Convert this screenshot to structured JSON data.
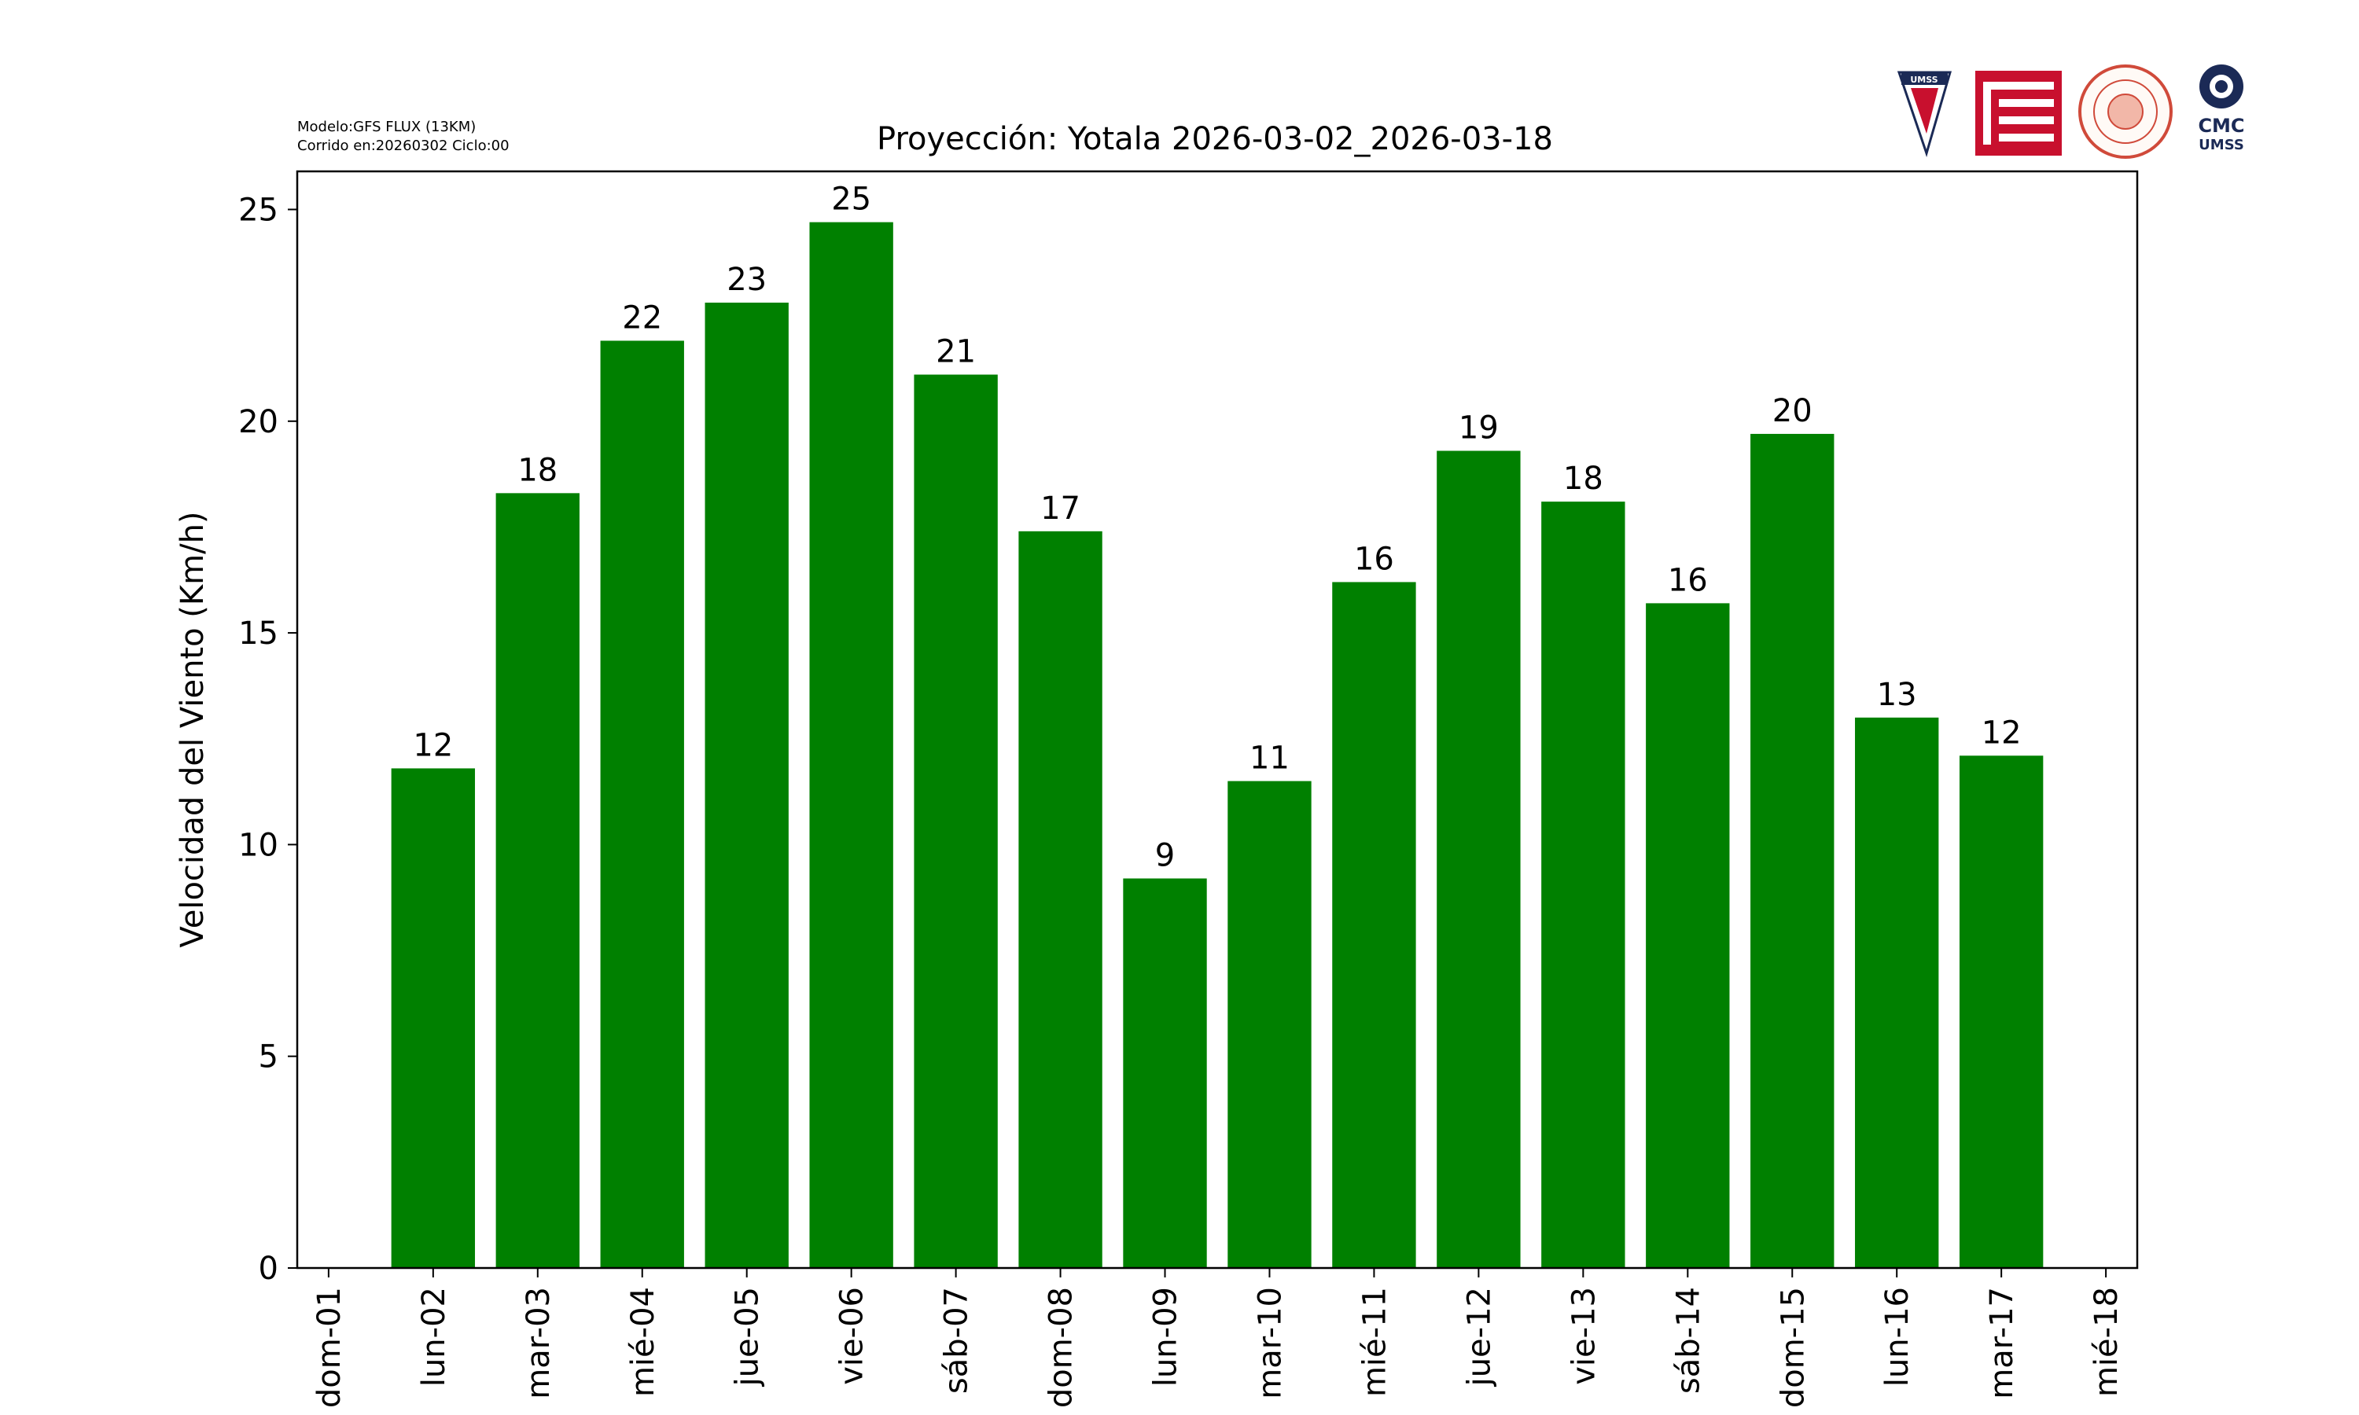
{
  "header": {
    "model_line": "Modelo:GFS FLUX (13KM)",
    "run_line": "Corrido en:20260302 Ciclo:00"
  },
  "logos": {
    "umss_label": "UMSS",
    "cmc_label": "CMC",
    "cmc_sub_label": "UMSS"
  },
  "chart_data": {
    "type": "bar",
    "title": "Proyección: Yotala  2026-03-02_2026-03-18",
    "xlabel": "",
    "ylabel": "Velocidad del Viento (Km/h)",
    "ylim": [
      0,
      25.9
    ],
    "yticks": [
      0,
      5,
      10,
      15,
      20,
      25
    ],
    "xticks": [
      "dom-01",
      "lun-02",
      "mar-03",
      "mié-04",
      "jue-05",
      "vie-06",
      "sáb-07",
      "dom-08",
      "lun-09",
      "mar-10",
      "mié-11",
      "jue-12",
      "vie-13",
      "sáb-14",
      "dom-15",
      "lun-16",
      "mar-17",
      "mié-18"
    ],
    "categories": [
      "lun-02",
      "mar-03",
      "mié-04",
      "jue-05",
      "vie-06",
      "sáb-07",
      "dom-08",
      "lun-09",
      "mar-10",
      "mié-11",
      "jue-12",
      "vie-13",
      "sáb-14",
      "dom-15",
      "lun-16",
      "mar-17"
    ],
    "values": [
      11.8,
      18.3,
      21.9,
      22.8,
      24.7,
      21.1,
      17.4,
      9.2,
      11.5,
      16.2,
      19.3,
      18.1,
      15.7,
      19.7,
      13.0,
      12.1
    ],
    "labels": [
      "12",
      "18",
      "22",
      "23",
      "25",
      "21",
      "17",
      "9",
      "11",
      "16",
      "19",
      "18",
      "16",
      "20",
      "13",
      "12"
    ],
    "bar_color": "#008000",
    "grid": false,
    "legend": "none"
  }
}
